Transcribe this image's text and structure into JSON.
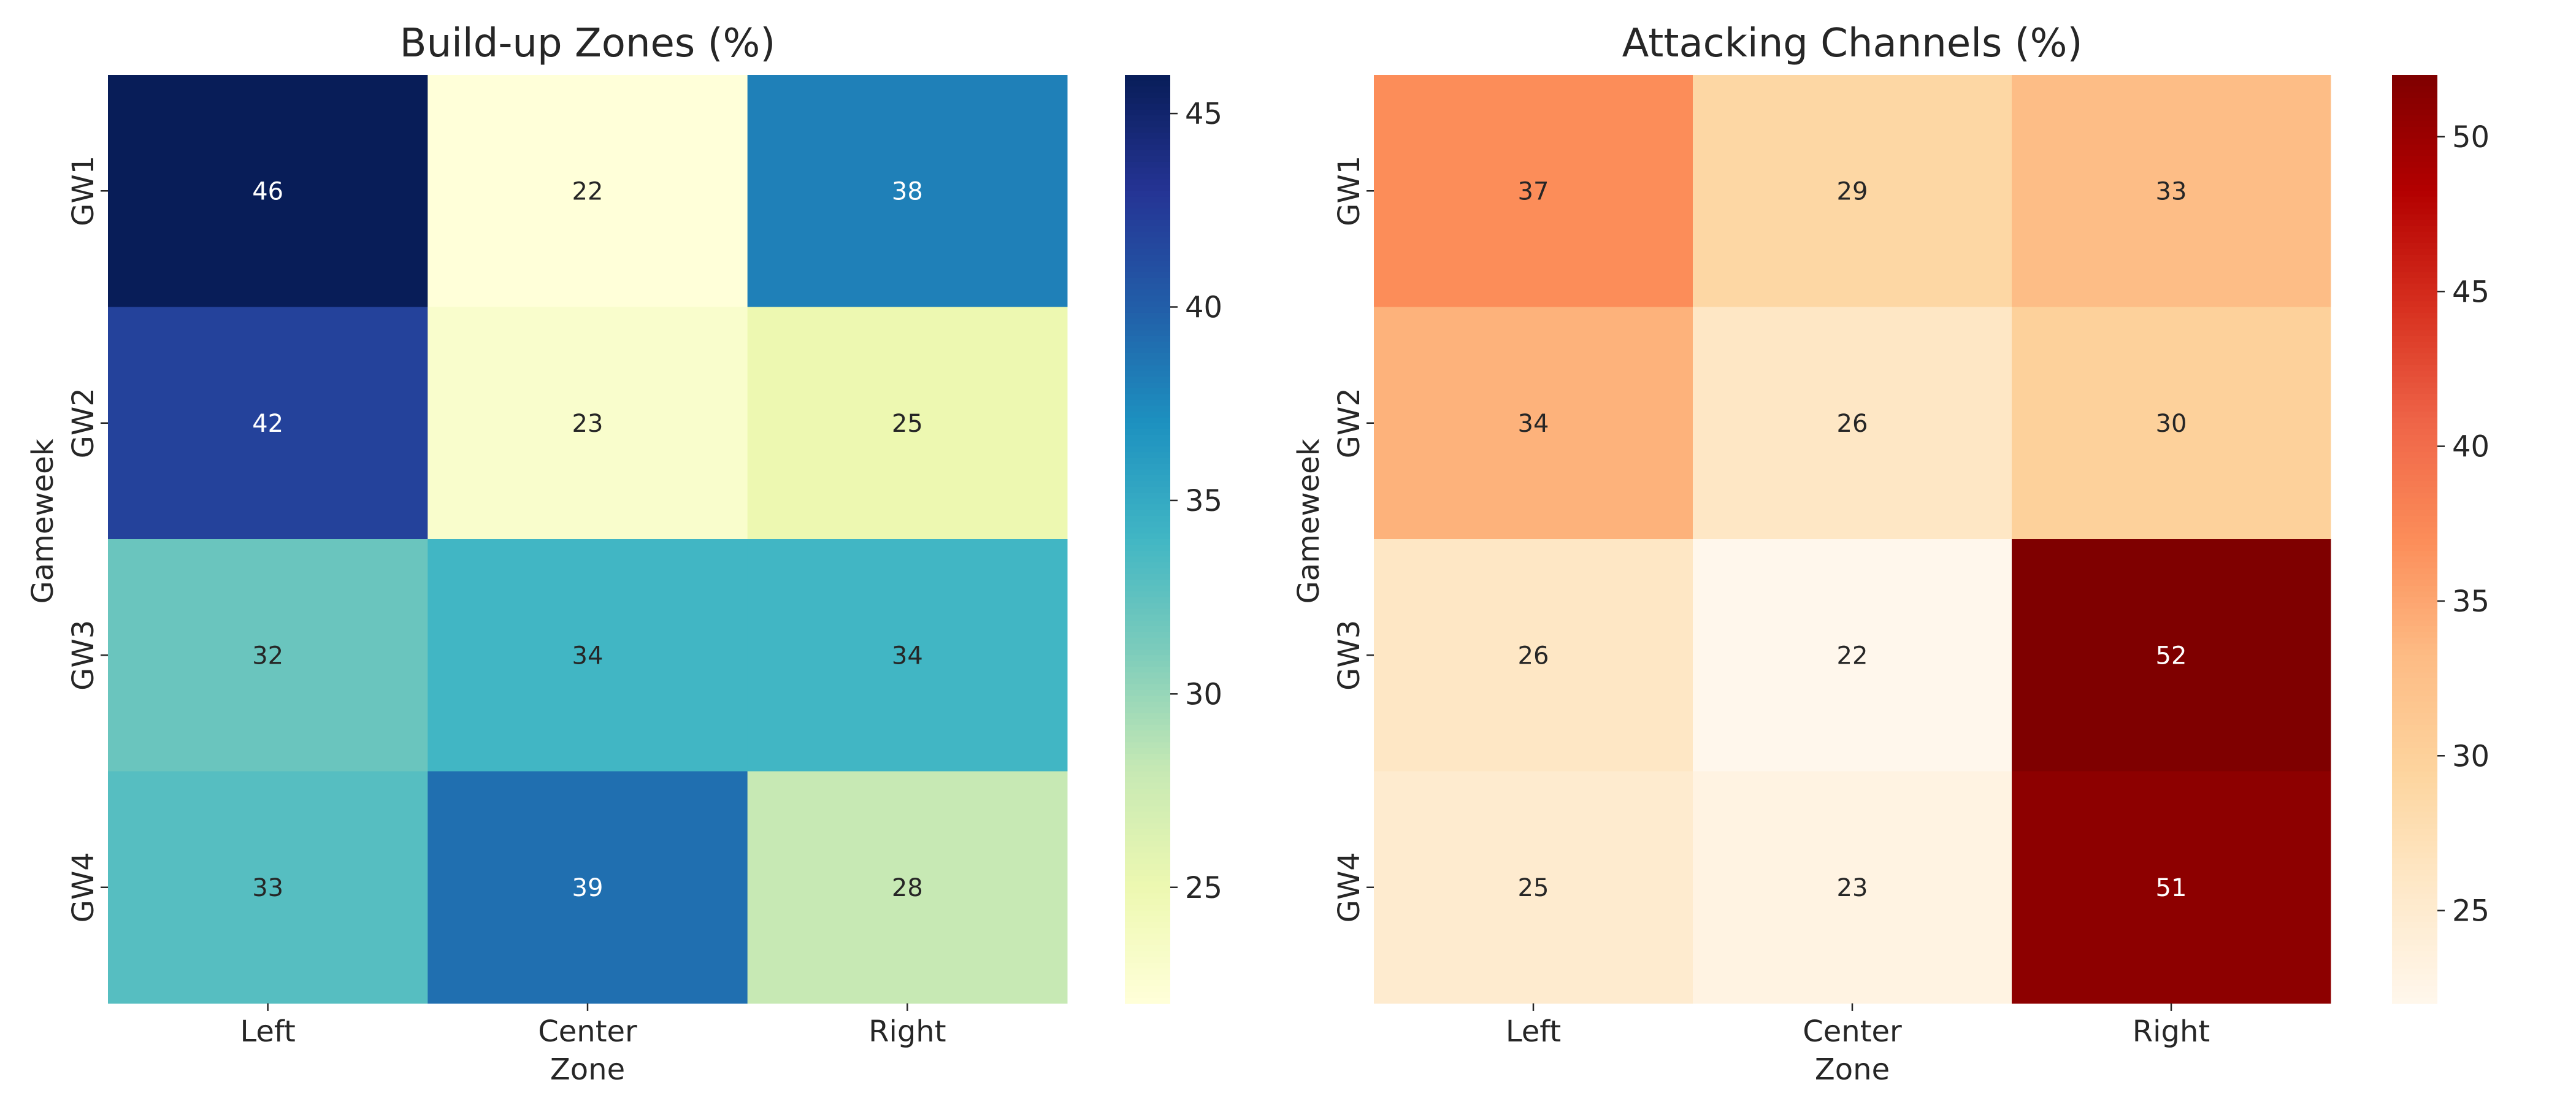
{
  "chart_data": [
    {
      "type": "heatmap",
      "title": "Build-up Zones (%)",
      "xlabel": "Zone",
      "ylabel": "Gameweek",
      "x_categories": [
        "Left",
        "Center",
        "Right"
      ],
      "y_categories": [
        "GW1",
        "GW2",
        "GW3",
        "GW4"
      ],
      "values": [
        [
          46,
          22,
          38
        ],
        [
          42,
          23,
          25
        ],
        [
          32,
          34,
          34
        ],
        [
          33,
          39,
          28
        ]
      ],
      "colormap": "YlGnBu",
      "color_range": [
        22,
        46
      ],
      "colorbar_ticks": [
        25,
        30,
        35,
        40,
        45
      ],
      "legend": "colorbar-right"
    },
    {
      "type": "heatmap",
      "title": "Attacking Channels (%)",
      "xlabel": "Zone",
      "ylabel": "Gameweek",
      "x_categories": [
        "Left",
        "Center",
        "Right"
      ],
      "y_categories": [
        "GW1",
        "GW2",
        "GW3",
        "GW4"
      ],
      "values": [
        [
          37,
          29,
          33
        ],
        [
          34,
          26,
          30
        ],
        [
          26,
          22,
          52
        ],
        [
          25,
          23,
          51
        ]
      ],
      "colormap": "OrRd",
      "color_range": [
        22,
        52
      ],
      "colorbar_ticks": [
        25,
        30,
        35,
        40,
        45,
        50
      ],
      "legend": "colorbar-right"
    }
  ]
}
